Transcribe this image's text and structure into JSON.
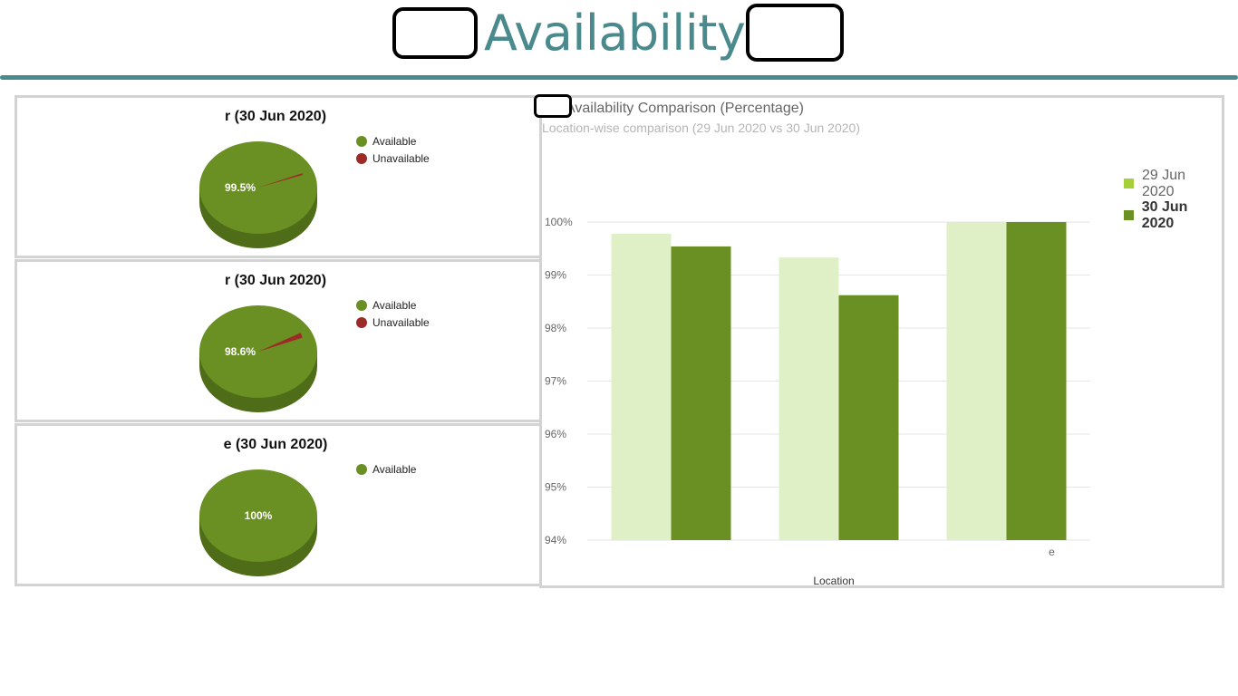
{
  "header": {
    "title": "Availability -"
  },
  "pie_panels": [
    {
      "title": "r (30 Jun 2020)",
      "legend": [
        {
          "label": "Available",
          "color": "#6a8f22"
        },
        {
          "label": "Unavailable",
          "color": "#9c2b27"
        }
      ],
      "available_pct": 99.5,
      "label": "99.5%"
    },
    {
      "title": "r (30 Jun 2020)",
      "legend": [
        {
          "label": "Available",
          "color": "#6a8f22"
        },
        {
          "label": "Unavailable",
          "color": "#9c2b27"
        }
      ],
      "available_pct": 98.6,
      "label": "98.6%"
    },
    {
      "title": "e (30 Jun 2020)",
      "legend": [
        {
          "label": "Available",
          "color": "#6a8f22"
        }
      ],
      "available_pct": 100,
      "label": "100%"
    }
  ],
  "colors": {
    "available": "#6a8f22",
    "available_side": "#4f6d18",
    "unavailable": "#9c2b27",
    "series_29": "#dfefc6",
    "series_30": "#6a8f22",
    "legend_29": "#a6cf3a",
    "title_teal": "#4a8a8c"
  },
  "chart_data": {
    "type": "bar",
    "title": "Availability Comparison (Percentage)",
    "subtitle": "Location-wise comparison (29 Jun 2020 vs 30 Jun 2020)",
    "xlabel": "Location",
    "ylabel": "",
    "categories": [
      "",
      "",
      "e"
    ],
    "series": [
      {
        "name": "29 Jun 2020",
        "values": [
          99.78,
          99.33,
          100
        ]
      },
      {
        "name": "30 Jun 2020",
        "values": [
          99.54,
          98.62,
          100
        ]
      }
    ],
    "ylim": [
      94,
      100
    ],
    "yticks": [
      "94%",
      "95%",
      "96%",
      "97%",
      "98%",
      "99%",
      "100%"
    ],
    "grid": true,
    "legend_position": "right"
  }
}
